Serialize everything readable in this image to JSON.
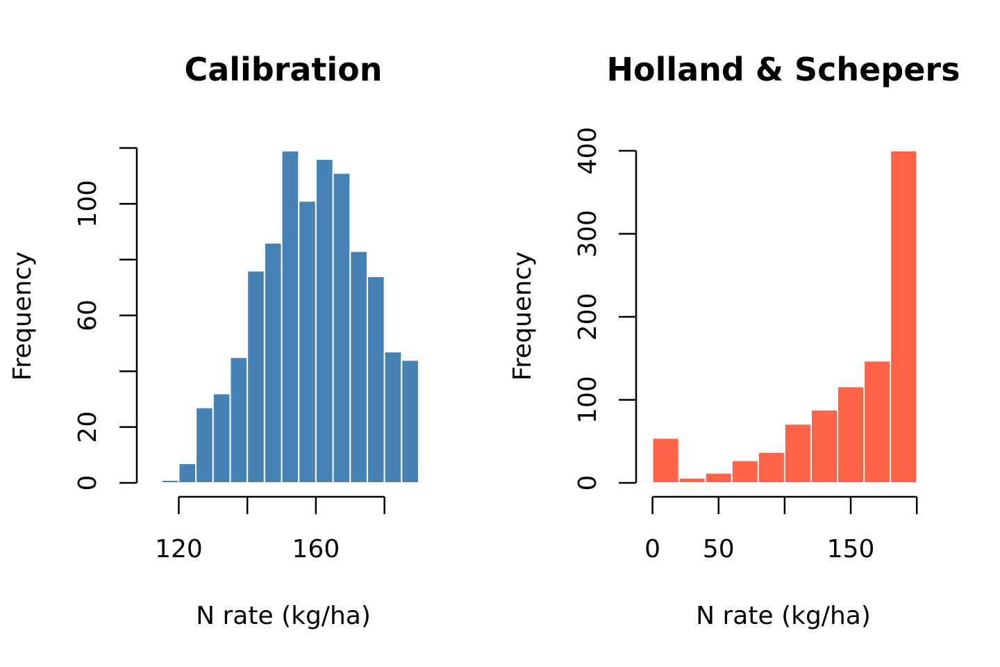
{
  "chart_data": [
    {
      "type": "bar",
      "subtype": "histogram",
      "title": "Calibration",
      "xlabel": "N rate (kg/ha)",
      "ylabel": "Frequency",
      "color": "#4682B4",
      "bins": [
        {
          "from": 115,
          "to": 120,
          "count": 1
        },
        {
          "from": 120,
          "to": 125,
          "count": 7
        },
        {
          "from": 125,
          "to": 130,
          "count": 27
        },
        {
          "from": 130,
          "to": 135,
          "count": 32
        },
        {
          "from": 135,
          "to": 140,
          "count": 45
        },
        {
          "from": 140,
          "to": 145,
          "count": 76
        },
        {
          "from": 145,
          "to": 150,
          "count": 86
        },
        {
          "from": 150,
          "to": 155,
          "count": 119
        },
        {
          "from": 155,
          "to": 160,
          "count": 101
        },
        {
          "from": 160,
          "to": 165,
          "count": 116
        },
        {
          "from": 165,
          "to": 170,
          "count": 111
        },
        {
          "from": 170,
          "to": 175,
          "count": 83
        },
        {
          "from": 175,
          "to": 180,
          "count": 74
        },
        {
          "from": 180,
          "to": 185,
          "count": 47
        },
        {
          "from": 185,
          "to": 190,
          "count": 44
        }
      ],
      "xlim": [
        111,
        190
      ],
      "ylim": [
        0,
        120
      ],
      "xticks": [
        120,
        140,
        160,
        180
      ],
      "xtick_labels": [
        "120",
        "",
        "160",
        ""
      ],
      "yticks": [
        0,
        20,
        40,
        60,
        80,
        100,
        120
      ],
      "ytick_labels": [
        "0",
        "20",
        "",
        "60",
        "",
        "100",
        ""
      ],
      "grid": false
    },
    {
      "type": "bar",
      "subtype": "histogram",
      "title": "Holland & Schepers",
      "xlabel": "N rate (kg/ha)",
      "ylabel": "Frequency",
      "color": "#FF6347",
      "bins": [
        {
          "from": 0,
          "to": 20,
          "count": 54
        },
        {
          "from": 20,
          "to": 40,
          "count": 6
        },
        {
          "from": 40,
          "to": 60,
          "count": 12
        },
        {
          "from": 60,
          "to": 80,
          "count": 27
        },
        {
          "from": 80,
          "to": 100,
          "count": 37
        },
        {
          "from": 100,
          "to": 120,
          "count": 71
        },
        {
          "from": 120,
          "to": 140,
          "count": 88
        },
        {
          "from": 140,
          "to": 160,
          "count": 116
        },
        {
          "from": 160,
          "to": 180,
          "count": 147
        },
        {
          "from": 180,
          "to": 200,
          "count": 400
        }
      ],
      "xlim": [
        -4,
        202
      ],
      "ylim": [
        0,
        400
      ],
      "xticks": [
        0,
        50,
        100,
        150,
        200
      ],
      "xtick_labels": [
        "0",
        "50",
        "",
        "150",
        ""
      ],
      "yticks": [
        0,
        100,
        200,
        300,
        400
      ],
      "ytick_labels": [
        "0",
        "100",
        "200",
        "300",
        "400"
      ],
      "grid": false
    }
  ]
}
